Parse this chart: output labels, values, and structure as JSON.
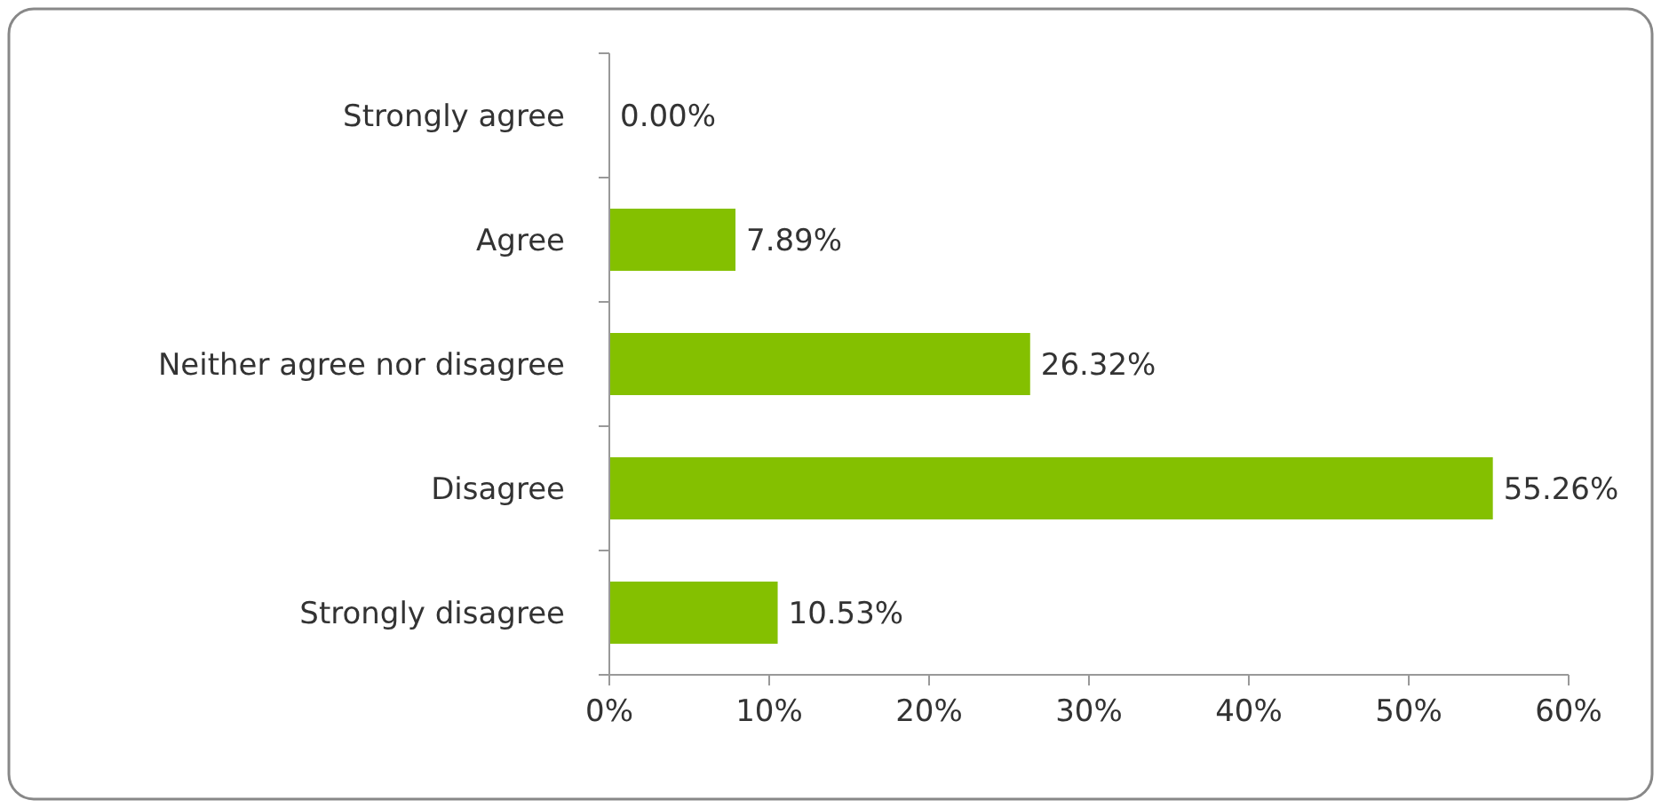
{
  "chart_data": {
    "type": "bar",
    "orientation": "horizontal",
    "categories": [
      "Strongly agree",
      "Agree",
      "Neither agree nor disagree",
      "Disagree",
      "Strongly disagree"
    ],
    "values": [
      0,
      7.89,
      26.32,
      55.26,
      10.53
    ],
    "value_labels": [
      "0.00%",
      "7.89%",
      "26.32%",
      "55.26%",
      "10.53%"
    ],
    "color": "#84c000",
    "xlim": [
      0,
      60
    ],
    "xticks": [
      {
        "value": 0,
        "label": "0%"
      },
      {
        "value": 10,
        "label": "10%"
      },
      {
        "value": 20,
        "label": "20%"
      },
      {
        "value": 30,
        "label": "30%"
      },
      {
        "value": 40,
        "label": "40%"
      },
      {
        "value": 50,
        "label": "50%"
      },
      {
        "value": 60,
        "label": "60%"
      }
    ],
    "grid": false
  }
}
